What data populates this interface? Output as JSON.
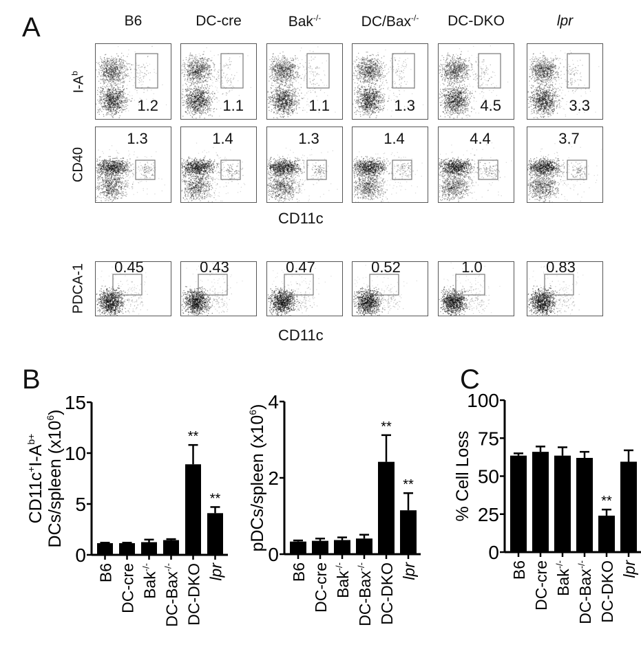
{
  "panel_a": {
    "letter": "A",
    "columns": [
      "B6",
      "DC-cre",
      "Bak",
      "DC/Bax",
      "DC-DKO",
      "lpr"
    ],
    "column_superscripts": [
      "",
      "",
      "-/-",
      "-/-",
      "",
      ""
    ],
    "rows": [
      {
        "label": "I-A",
        "label_sup": "b",
        "values": [
          "1.2",
          "1.1",
          "1.1",
          "1.3",
          "4.5",
          "3.3"
        ]
      },
      {
        "label": "CD40",
        "label_sup": "",
        "values": [
          "1.3",
          "1.4",
          "1.3",
          "1.4",
          "4.4",
          "3.7"
        ]
      },
      {
        "label": "PDCA-1",
        "label_sup": "",
        "values": [
          "0.45",
          "0.43",
          "0.47",
          "0.52",
          "1.0",
          "0.83"
        ]
      }
    ],
    "x_axis_label_1": "CD11c",
    "x_axis_label_2": "CD11c"
  },
  "panel_b": {
    "letter": "B"
  },
  "panel_c": {
    "letter": "C"
  },
  "chart_data": [
    {
      "id": "A-facs",
      "type": "table",
      "title": "Flow cytometry gate percentages",
      "columns": [
        "B6",
        "DC-cre",
        "Bak-/-",
        "DC/Bax-/-",
        "DC-DKO",
        "lpr"
      ],
      "rows": [
        {
          "marker": "I-Ab vs CD11c",
          "values": [
            1.2,
            1.1,
            1.1,
            1.3,
            4.5,
            3.3
          ]
        },
        {
          "marker": "CD40 vs CD11c",
          "values": [
            1.3,
            1.4,
            1.3,
            1.4,
            4.4,
            3.7
          ]
        },
        {
          "marker": "PDCA-1 vs CD11c",
          "values": [
            0.45,
            0.43,
            0.47,
            0.52,
            1.0,
            0.83
          ]
        }
      ]
    },
    {
      "id": "B-left",
      "type": "bar",
      "categories": [
        "B6",
        "DC-cre",
        "Bak-/-",
        "DC-Bax-/-",
        "DC-DKO",
        "lpr"
      ],
      "values": [
        1.15,
        1.15,
        1.25,
        1.45,
        8.9,
        4.1
      ],
      "errors": [
        0.05,
        0.05,
        0.25,
        0.1,
        1.9,
        0.6
      ],
      "significance": [
        "",
        "",
        "",
        "",
        "**",
        "**"
      ],
      "title": "",
      "xlabel": "",
      "ylabel_line1": "CD11c+I-Ab+",
      "ylabel_line2": "DCs/spleen (x10^6)",
      "ylim": [
        0,
        15
      ],
      "yticks": [
        0,
        5,
        10,
        15
      ],
      "grid": false
    },
    {
      "id": "B-right",
      "type": "bar",
      "categories": [
        "B6",
        "DC-cre",
        "Bak-/-",
        "DC-Bax-/-",
        "DC-DKO",
        "lpr"
      ],
      "values": [
        0.33,
        0.35,
        0.37,
        0.41,
        2.42,
        1.15
      ],
      "errors": [
        0.03,
        0.06,
        0.07,
        0.1,
        0.7,
        0.45
      ],
      "significance": [
        "",
        "",
        "",
        "",
        "**",
        "**"
      ],
      "title": "",
      "xlabel": "",
      "ylabel": "pDCs/spleen (x10^6)",
      "ylim": [
        0,
        4
      ],
      "yticks": [
        0,
        2,
        4
      ],
      "grid": false
    },
    {
      "id": "C",
      "type": "bar",
      "categories": [
        "B6",
        "DC-cre",
        "Bak-/-",
        "DC-Bax-/-",
        "DC-DKO",
        "lpr"
      ],
      "values": [
        63.5,
        66,
        63.5,
        62,
        24,
        59.5
      ],
      "errors": [
        1.5,
        3.5,
        5.5,
        4,
        4,
        7.5
      ],
      "significance": [
        "",
        "",
        "",
        "",
        "**",
        ""
      ],
      "title": "",
      "xlabel": "",
      "ylabel": "% Cell Loss",
      "ylim": [
        0,
        100
      ],
      "yticks": [
        0,
        25,
        50,
        75,
        100
      ],
      "grid": false
    }
  ],
  "axis_labels": {
    "b_left_line1_main": "CD11c",
    "b_left_line1_sup1": "+",
    "b_left_line1_mid": "I-A",
    "b_left_line1_sup2": "b+",
    "b_left_line2": "DCs/spleen (x10",
    "b_left_line2_sup": "6",
    "b_left_line2_end": ")",
    "b_right": "pDCs/spleen (x10",
    "b_right_sup": "6",
    "b_right_end": ")",
    "c": "% Cell Loss"
  },
  "category_labels": [
    {
      "main": "B6",
      "sup": "",
      "italic": false
    },
    {
      "main": "DC-cre",
      "sup": "",
      "italic": false
    },
    {
      "main": "Bak",
      "sup": "-/-",
      "italic": false
    },
    {
      "main": "DC-Bax",
      "sup": "-/-",
      "italic": false
    },
    {
      "main": "DC-DKO",
      "sup": "",
      "italic": false
    },
    {
      "main": "lpr",
      "sup": "",
      "italic": true
    }
  ],
  "significance_marker": "**"
}
